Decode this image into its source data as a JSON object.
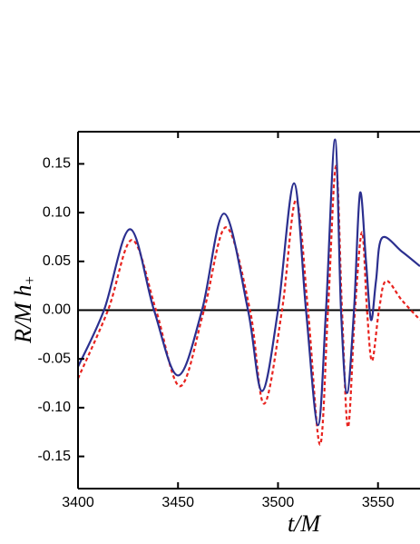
{
  "chart_data": {
    "type": "line",
    "xlabel": "t/M",
    "ylabel": {
      "main": "R/M h",
      "sub": "+"
    },
    "xlim": [
      3400,
      3571
    ],
    "ylim": [
      -0.183,
      0.183
    ],
    "xticks": [
      3400,
      3450,
      3500,
      3550
    ],
    "yticks": [
      {
        "value": -0.15,
        "label": "-0.15"
      },
      {
        "value": -0.1,
        "label": "-0.10"
      },
      {
        "value": -0.05,
        "label": "-0.05"
      },
      {
        "value": 0,
        "label": "0.00"
      },
      {
        "value": 0.05,
        "label": "0.05"
      },
      {
        "value": 0.1,
        "label": "0.10"
      },
      {
        "value": 0.15,
        "label": "0.15"
      }
    ],
    "hline": 0,
    "series": [
      {
        "color": "#2b2f8f",
        "dash": false,
        "x": [
          3400,
          3413,
          3426,
          3438,
          3450,
          3462,
          3473,
          3485,
          3492,
          3500,
          3508,
          3514,
          3520,
          3524,
          3528.5,
          3531.5,
          3534.5,
          3538,
          3541,
          3544,
          3546.5,
          3549,
          3552,
          3562,
          3571
        ],
        "values": [
          -0.058,
          0,
          0.083,
          0,
          -0.067,
          0,
          0.099,
          0,
          -0.083,
          0,
          0.13,
          0,
          -0.118,
          0,
          0.175,
          0,
          -0.085,
          0,
          0.12,
          0.05,
          -0.01,
          0.03,
          0.074,
          0.06,
          0.045
        ]
      },
      {
        "color": "#e8231f",
        "dash": true,
        "x": [
          3400,
          3415,
          3427,
          3439,
          3451,
          3463,
          3474,
          3486,
          3493,
          3502,
          3509,
          3515,
          3521,
          3525,
          3529,
          3532,
          3535,
          3538.5,
          3542,
          3544.5,
          3547,
          3550.5,
          3554,
          3562,
          3571
        ],
        "values": [
          -0.07,
          0,
          0.072,
          0,
          -0.078,
          0,
          0.085,
          0,
          -0.096,
          0,
          0.113,
          0,
          -0.138,
          0,
          0.148,
          0,
          -0.12,
          0,
          0.08,
          0,
          -0.052,
          0,
          0.03,
          0.01,
          -0.01
        ]
      }
    ]
  }
}
